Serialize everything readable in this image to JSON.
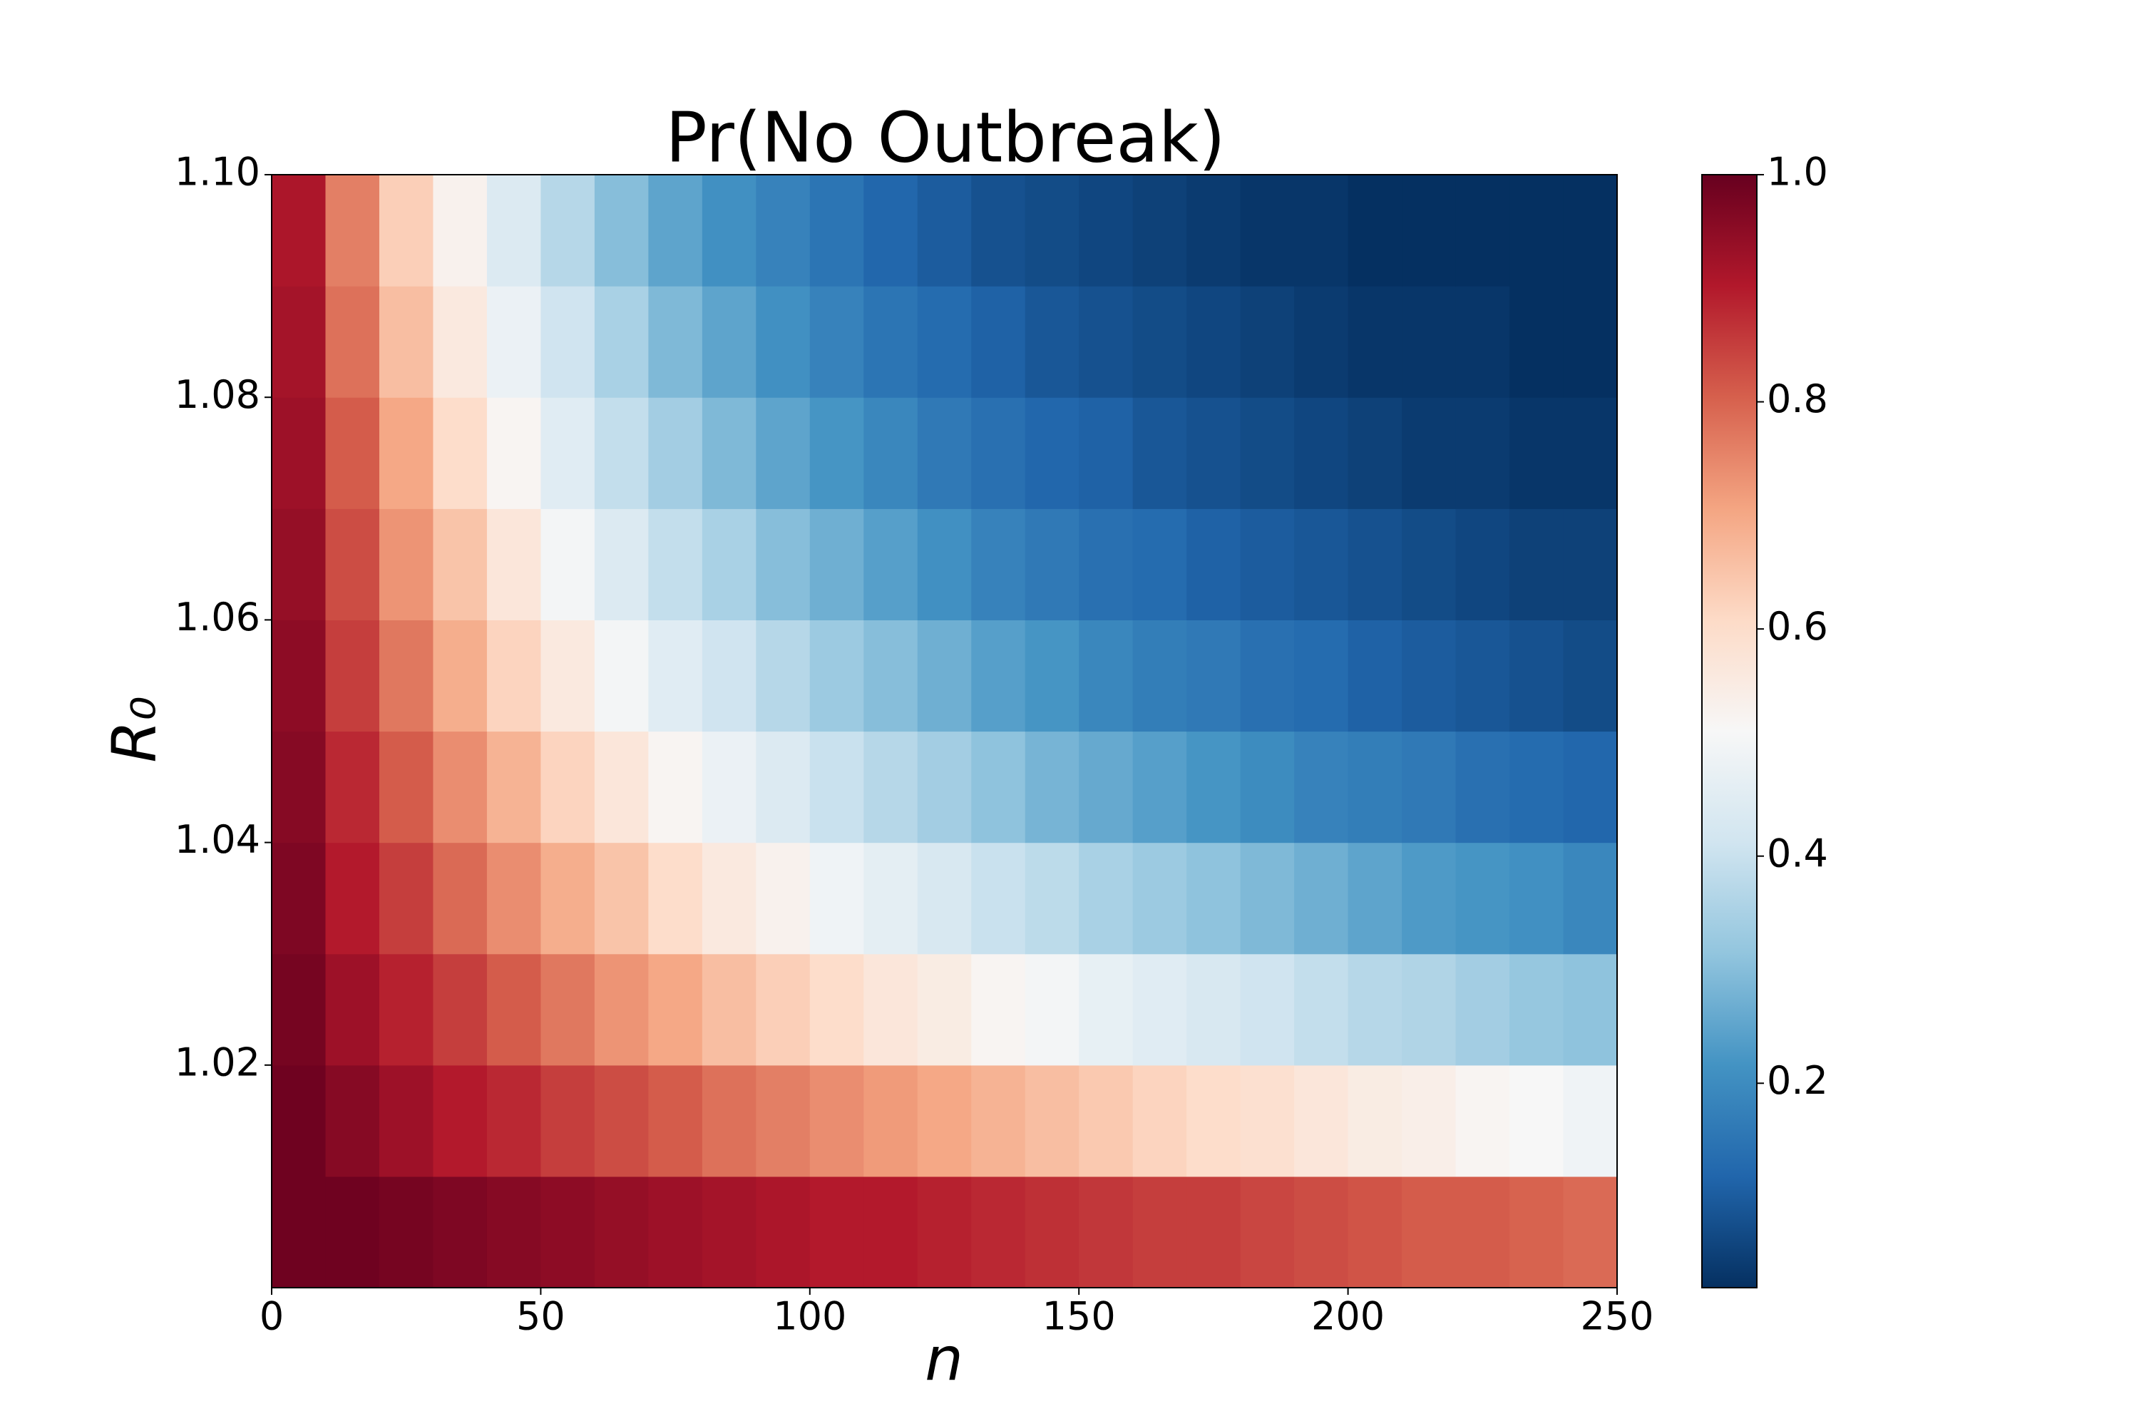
{
  "chart_data": {
    "type": "heatmap",
    "title": "Pr(No Outbreak)",
    "xlabel": "n",
    "ylabel": "R₀",
    "xlim": [
      0,
      250
    ],
    "xticks": [
      0,
      50,
      100,
      150,
      200,
      250
    ],
    "ylim": [
      1.0,
      1.1
    ],
    "yticks": [
      1.02,
      1.04,
      1.06,
      1.08,
      {
        "value": 1.1,
        "label": "1.10"
      }
    ],
    "colormap": "RdBu_r",
    "clim": [
      0.02,
      1
    ],
    "colorbar_ticks": [
      0.2,
      0.4,
      0.6,
      0.8,
      {
        "value": 1,
        "label": "1.0"
      }
    ],
    "x_edges": [
      0,
      10,
      20,
      30,
      40,
      50,
      60,
      70,
      80,
      90,
      100,
      110,
      120,
      130,
      140,
      150,
      160,
      170,
      180,
      190,
      200,
      210,
      220,
      230,
      240,
      250
    ],
    "y_edges": [
      1.0,
      1.01,
      1.02,
      1.03,
      1.04,
      1.05,
      1.06,
      1.07,
      1.08,
      1.09,
      1.1
    ],
    "values": [
      [
        0.99,
        0.99,
        0.98,
        0.97,
        0.96,
        0.95,
        0.94,
        0.93,
        0.92,
        0.91,
        0.9,
        0.9,
        0.89,
        0.88,
        0.87,
        0.86,
        0.85,
        0.85,
        0.84,
        0.83,
        0.82,
        0.81,
        0.81,
        0.8,
        0.79
      ],
      [
        0.99,
        0.96,
        0.93,
        0.9,
        0.88,
        0.85,
        0.83,
        0.81,
        0.78,
        0.76,
        0.74,
        0.72,
        0.7,
        0.68,
        0.66,
        0.64,
        0.62,
        0.6,
        0.59,
        0.57,
        0.55,
        0.54,
        0.52,
        0.51,
        0.49
      ],
      [
        0.98,
        0.93,
        0.89,
        0.85,
        0.81,
        0.77,
        0.73,
        0.7,
        0.66,
        0.63,
        0.6,
        0.57,
        0.55,
        0.52,
        0.5,
        0.47,
        0.45,
        0.43,
        0.41,
        0.39,
        0.37,
        0.36,
        0.34,
        0.32,
        0.31
      ],
      [
        0.97,
        0.9,
        0.85,
        0.79,
        0.74,
        0.69,
        0.65,
        0.6,
        0.56,
        0.53,
        0.49,
        0.46,
        0.43,
        0.4,
        0.38,
        0.35,
        0.33,
        0.31,
        0.29,
        0.27,
        0.25,
        0.23,
        0.22,
        0.21,
        0.19
      ],
      [
        0.96,
        0.88,
        0.81,
        0.74,
        0.68,
        0.62,
        0.57,
        0.52,
        0.48,
        0.44,
        0.4,
        0.37,
        0.34,
        0.31,
        0.28,
        0.26,
        0.24,
        0.22,
        0.2,
        0.18,
        0.17,
        0.16,
        0.14,
        0.13,
        0.12
      ],
      [
        0.95,
        0.85,
        0.77,
        0.69,
        0.62,
        0.56,
        0.5,
        0.45,
        0.41,
        0.37,
        0.33,
        0.3,
        0.27,
        0.24,
        0.22,
        0.19,
        0.17,
        0.16,
        0.14,
        0.13,
        0.11,
        0.1,
        0.09,
        0.08,
        0.07
      ],
      [
        0.94,
        0.83,
        0.73,
        0.65,
        0.57,
        0.5,
        0.44,
        0.39,
        0.35,
        0.3,
        0.27,
        0.24,
        0.21,
        0.18,
        0.16,
        0.14,
        0.13,
        0.11,
        0.1,
        0.09,
        0.08,
        0.07,
        0.06,
        0.05,
        0.05
      ],
      [
        0.93,
        0.81,
        0.7,
        0.6,
        0.52,
        0.45,
        0.39,
        0.34,
        0.29,
        0.25,
        0.22,
        0.19,
        0.16,
        0.14,
        0.12,
        0.11,
        0.09,
        0.08,
        0.07,
        0.06,
        0.05,
        0.04,
        0.04,
        0.03,
        0.03
      ],
      [
        0.92,
        0.78,
        0.66,
        0.56,
        0.48,
        0.41,
        0.35,
        0.29,
        0.25,
        0.21,
        0.18,
        0.15,
        0.13,
        0.11,
        0.09,
        0.08,
        0.07,
        0.06,
        0.05,
        0.04,
        0.03,
        0.03,
        0.03,
        0.02,
        0.02
      ],
      [
        0.91,
        0.76,
        0.63,
        0.53,
        0.44,
        0.37,
        0.3,
        0.25,
        0.21,
        0.18,
        0.15,
        0.12,
        0.1,
        0.08,
        0.07,
        0.06,
        0.05,
        0.04,
        0.03,
        0.03,
        0.02,
        0.02,
        0.02,
        0.01,
        0.01
      ]
    ]
  }
}
